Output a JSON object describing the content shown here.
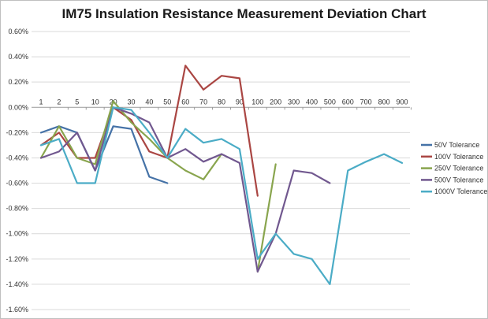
{
  "chart_data": {
    "type": "line",
    "title": "IM75 Insulation Resistance Measurement Deviation Chart",
    "xlabel": "",
    "ylabel": "",
    "categories": [
      "1",
      "2",
      "5",
      "10",
      "20",
      "30",
      "40",
      "50",
      "60",
      "70",
      "80",
      "90",
      "100",
      "200",
      "300",
      "400",
      "500",
      "600",
      "700",
      "800",
      "900"
    ],
    "y_tick_labels": [
      "0.60%",
      "0.40%",
      "0.20%",
      "0.00%",
      "-0.20%",
      "-0.40%",
      "-0.60%",
      "-0.80%",
      "-1.00%",
      "-1.20%",
      "-1.40%",
      "-1.60%"
    ],
    "y_ticks": [
      0.6,
      0.4,
      0.2,
      0.0,
      -0.2,
      -0.4,
      -0.6,
      -0.8,
      -1.0,
      -1.2,
      -1.4,
      -1.6
    ],
    "ylim": [
      -1.6,
      0.6
    ],
    "grid": true,
    "legend_position": "right",
    "series": [
      {
        "name": "50V Tolerance",
        "color": "#4572a7",
        "values": [
          -0.2,
          -0.15,
          -0.2,
          -0.5,
          -0.15,
          -0.17,
          -0.55,
          -0.6,
          null,
          null,
          null,
          null,
          null,
          null,
          null,
          null,
          null,
          null,
          null,
          null,
          null
        ]
      },
      {
        "name": "100V Tolerance",
        "color": "#aa4643",
        "values": [
          -0.3,
          -0.2,
          -0.4,
          -0.4,
          0.0,
          -0.1,
          -0.35,
          -0.4,
          0.33,
          0.14,
          0.25,
          0.23,
          -0.7,
          null,
          null,
          null,
          null,
          null,
          null,
          null,
          null
        ]
      },
      {
        "name": "250V Tolerance",
        "color": "#89a54e",
        "values": [
          -0.4,
          -0.15,
          -0.4,
          -0.45,
          0.05,
          -0.12,
          -0.25,
          -0.4,
          -0.5,
          -0.57,
          -0.37,
          null,
          -1.3,
          -0.45,
          null,
          null,
          null,
          null,
          null,
          null,
          null
        ]
      },
      {
        "name": "500V Tolerance",
        "color": "#71588f",
        "values": [
          -0.4,
          -0.35,
          -0.2,
          -0.5,
          0.0,
          -0.05,
          -0.12,
          -0.4,
          -0.33,
          -0.43,
          -0.37,
          -0.44,
          -1.3,
          -1.0,
          -0.5,
          -0.52,
          -0.6,
          null,
          null,
          null,
          null
        ]
      },
      {
        "name": "1000V Tolerance",
        "color": "#4bacc6",
        "values": [
          -0.3,
          -0.25,
          -0.6,
          -0.6,
          0.0,
          -0.02,
          -0.2,
          -0.4,
          -0.17,
          -0.28,
          -0.25,
          -0.33,
          -1.2,
          -1.0,
          -1.16,
          -1.2,
          -1.4,
          -0.5,
          -0.43,
          -0.37,
          -0.44
        ]
      }
    ]
  }
}
